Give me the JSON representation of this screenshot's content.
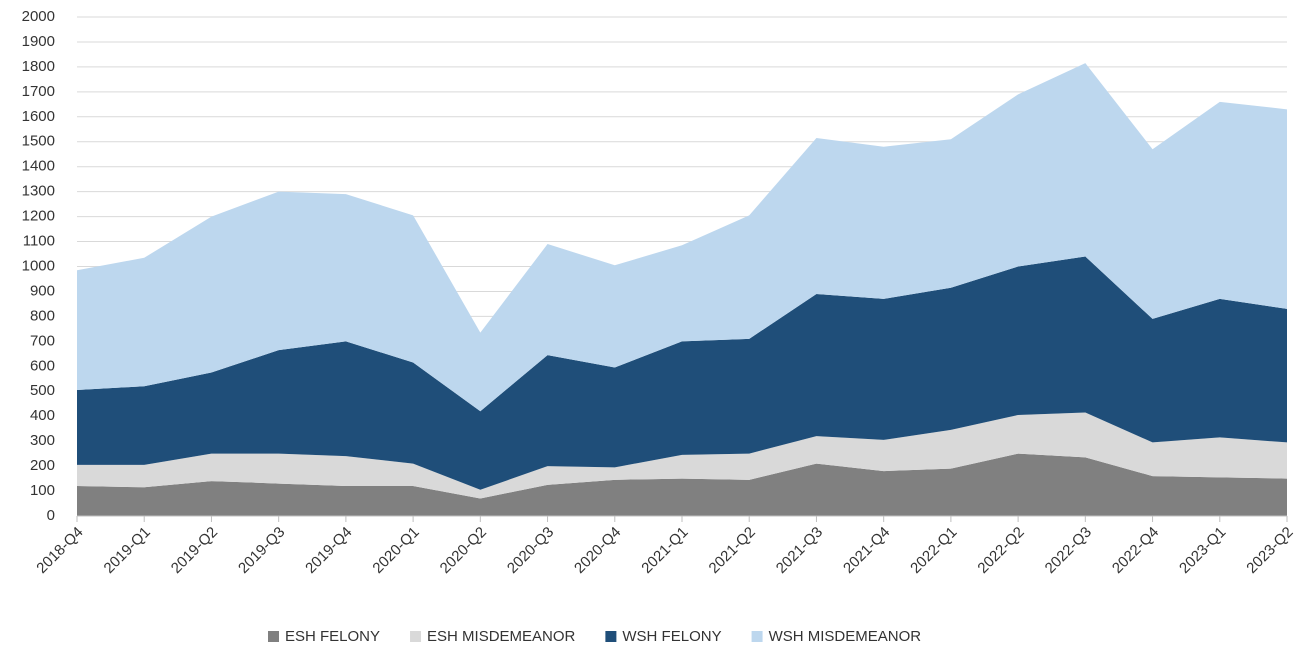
{
  "chart_data": {
    "type": "stacked_area",
    "categories": [
      "2018-Q4",
      "2019-Q1",
      "2019-Q2",
      "2019-Q3",
      "2019-Q4",
      "2020-Q1",
      "2020-Q2",
      "2020-Q3",
      "2020-Q4",
      "2021-Q1",
      "2021-Q2",
      "2021-Q3",
      "2021-Q4",
      "2022-Q1",
      "2022-Q2",
      "2022-Q3",
      "2022-Q4",
      "2023-Q1",
      "2023-Q2"
    ],
    "series": [
      {
        "name": "ESH FELONY",
        "color": "#808080",
        "values": [
          120,
          115,
          140,
          130,
          120,
          120,
          70,
          125,
          145,
          150,
          145,
          210,
          180,
          190,
          250,
          235,
          160,
          155,
          150
        ]
      },
      {
        "name": "ESH MISDEMEANOR",
        "color": "#d9d9d9",
        "values": [
          85,
          90,
          110,
          120,
          120,
          90,
          35,
          75,
          50,
          95,
          105,
          110,
          125,
          155,
          155,
          180,
          135,
          160,
          145
        ]
      },
      {
        "name": "WSH FELONY",
        "color": "#1f4e79",
        "values": [
          300,
          315,
          325,
          415,
          460,
          405,
          315,
          445,
          400,
          455,
          460,
          570,
          565,
          570,
          595,
          625,
          495,
          555,
          535
        ]
      },
      {
        "name": "WSH MISDEMEANOR",
        "color": "#bdd7ee",
        "values": [
          480,
          515,
          625,
          635,
          590,
          590,
          315,
          445,
          410,
          385,
          495,
          625,
          610,
          595,
          690,
          775,
          680,
          790,
          800
        ]
      }
    ],
    "ylim": [
      0,
      2000
    ],
    "yticks": [
      0,
      100,
      200,
      300,
      400,
      500,
      600,
      700,
      800,
      900,
      1000,
      1100,
      1200,
      1300,
      1400,
      1500,
      1600,
      1700,
      1800,
      1900,
      2000
    ],
    "grid": true,
    "legend": "bottom"
  }
}
